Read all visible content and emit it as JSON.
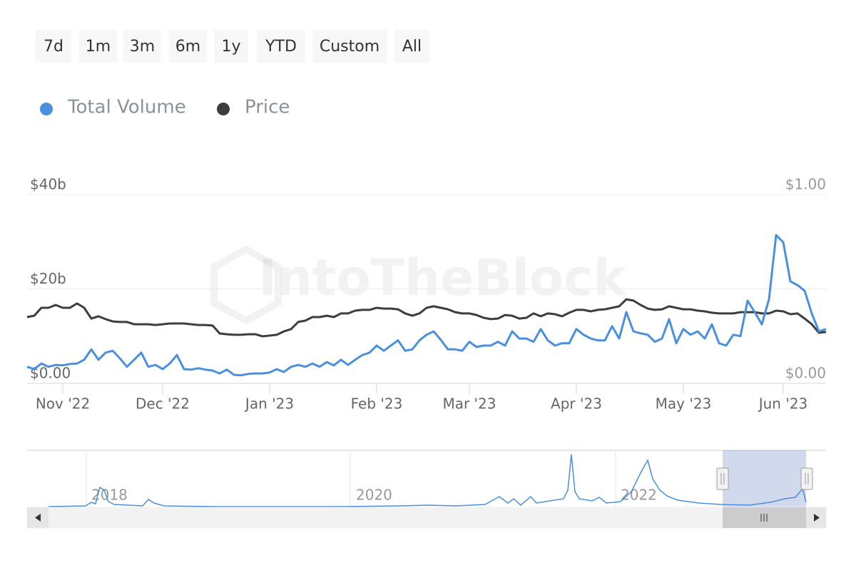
{
  "range_buttons": [
    "7d",
    "1m",
    "3m",
    "6m",
    "1y",
    "YTD",
    "Custom",
    "All"
  ],
  "watermark": "IntoTheBlock",
  "navigator": {
    "labels": [
      "2018",
      "2020",
      "2022"
    ]
  },
  "chart_data": {
    "type": "line",
    "categories": [
      null,
      null,
      null,
      null,
      null,
      "Nov '22",
      null,
      null,
      null,
      null,
      null,
      null,
      null,
      null,
      null,
      null,
      null,
      null,
      null,
      "Dec '22",
      null,
      null,
      null,
      null,
      null,
      null,
      null,
      null,
      null,
      null,
      null,
      null,
      null,
      null,
      "Jan '23",
      null,
      null,
      null,
      null,
      null,
      null,
      null,
      null,
      null,
      null,
      null,
      null,
      null,
      null,
      "Feb '23",
      null,
      null,
      null,
      null,
      null,
      null,
      null,
      null,
      null,
      null,
      null,
      null,
      "Mar '23",
      null,
      null,
      null,
      null,
      null,
      null,
      null,
      null,
      null,
      null,
      null,
      null,
      null,
      null,
      "Apr '23",
      null,
      null,
      null,
      null,
      null,
      null,
      null,
      null,
      null,
      null,
      null,
      null,
      null,
      null,
      "May '23",
      null,
      null,
      null,
      null,
      null,
      null,
      null,
      null,
      null,
      null,
      null,
      null,
      null,
      "Jun '23",
      null,
      null,
      null,
      null,
      null,
      null
    ],
    "series": [
      {
        "name": "Total Volume",
        "color": "#4a8fe0",
        "values": [
          3.5,
          3.0,
          4.2,
          3.5,
          3.9,
          3.8,
          4.1,
          4.2,
          5.0,
          7.2,
          5.0,
          6.5,
          6.9,
          5.3,
          3.5,
          5.0,
          6.5,
          3.5,
          3.9,
          3.0,
          4.2,
          6.0,
          3.0,
          2.9,
          3.2,
          2.9,
          2.7,
          2.1,
          2.9,
          1.8,
          1.7,
          2.0,
          2.1,
          2.1,
          2.3,
          3.0,
          2.4,
          3.5,
          3.9,
          3.5,
          4.2,
          3.5,
          4.5,
          3.8,
          5.0,
          3.9,
          5.0,
          6.0,
          6.5,
          8.0,
          6.9,
          8.0,
          9.1,
          6.9,
          7.2,
          9.1,
          10.3,
          11.0,
          9.2,
          7.2,
          7.2,
          6.9,
          8.8,
          7.7,
          8.0,
          8.0,
          8.8,
          8.0,
          11.0,
          9.5,
          9.5,
          8.8,
          11.5,
          9.1,
          8.0,
          8.5,
          8.5,
          11.5,
          10.3,
          9.5,
          9.1,
          9.1,
          12.1,
          9.5,
          15.1,
          11.0,
          10.6,
          10.3,
          8.8,
          9.5,
          13.6,
          8.5,
          11.5,
          10.3,
          11.0,
          9.5,
          12.5,
          8.5,
          8.0,
          10.3,
          10.0,
          17.5,
          15.1,
          12.5,
          17.8,
          31.4,
          29.9,
          21.6,
          20.8,
          19.6,
          14.8,
          11.0,
          11.5
        ]
      },
      {
        "name": "Price",
        "color": "#3a3d42",
        "axis": "y2",
        "values": [
          0.351,
          0.358,
          0.4,
          0.4,
          0.415,
          0.4,
          0.4,
          0.423,
          0.4,
          0.343,
          0.355,
          0.34,
          0.328,
          0.325,
          0.325,
          0.313,
          0.313,
          0.313,
          0.309,
          0.313,
          0.317,
          0.317,
          0.317,
          0.313,
          0.309,
          0.309,
          0.306,
          0.264,
          0.26,
          0.257,
          0.257,
          0.26,
          0.26,
          0.249,
          0.253,
          0.257,
          0.275,
          0.287,
          0.325,
          0.332,
          0.351,
          0.351,
          0.358,
          0.351,
          0.37,
          0.37,
          0.385,
          0.389,
          0.389,
          0.4,
          0.396,
          0.396,
          0.392,
          0.37,
          0.358,
          0.37,
          0.4,
          0.408,
          0.4,
          0.392,
          0.377,
          0.37,
          0.37,
          0.362,
          0.347,
          0.34,
          0.343,
          0.362,
          0.358,
          0.343,
          0.347,
          0.37,
          0.355,
          0.37,
          0.366,
          0.355,
          0.374,
          0.389,
          0.389,
          0.381,
          0.389,
          0.392,
          0.4,
          0.408,
          0.445,
          0.438,
          0.415,
          0.396,
          0.389,
          0.392,
          0.408,
          0.4,
          0.392,
          0.392,
          0.385,
          0.381,
          0.374,
          0.37,
          0.37,
          0.37,
          0.377,
          0.377,
          0.377,
          0.37,
          0.37,
          0.385,
          0.381,
          0.366,
          0.37,
          0.343,
          0.313,
          0.268,
          0.272
        ]
      }
    ],
    "ylim": [
      0,
      40
    ],
    "yticks": [
      {
        "value": 0,
        "label": "$0.00"
      },
      {
        "value": 20,
        "label": "$20b"
      },
      {
        "value": 40,
        "label": "$40b"
      }
    ],
    "y2lim": [
      0,
      1
    ],
    "y2ticks": [
      {
        "value": 0,
        "label": "$0.00"
      },
      {
        "value": 1,
        "label": "$1.00"
      }
    ],
    "grid": true,
    "legend": "top"
  }
}
